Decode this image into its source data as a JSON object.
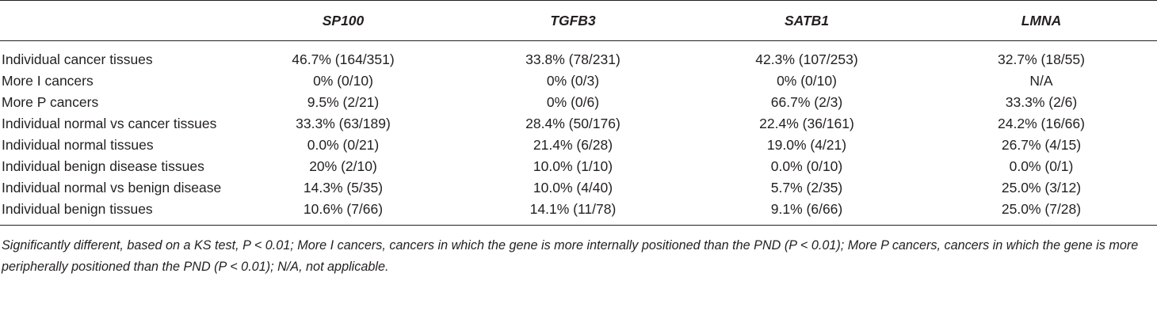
{
  "table": {
    "header": {
      "corner": "",
      "columns": [
        "SP100",
        "TGFB3",
        "SATB1",
        "LMNA"
      ]
    },
    "rows": [
      {
        "label": "Individual cancer tissues",
        "values": [
          "46.7% (164/351)",
          "33.8% (78/231)",
          "42.3% (107/253)",
          "32.7% (18/55)"
        ]
      },
      {
        "label": "More I cancers",
        "values": [
          "0% (0/10)",
          "0% (0/3)",
          "0% (0/10)",
          "N/A"
        ]
      },
      {
        "label": "More P cancers",
        "values": [
          "9.5% (2/21)",
          "0% (0/6)",
          "66.7% (2/3)",
          "33.3% (2/6)"
        ]
      },
      {
        "label": "Individual normal vs cancer tissues",
        "values": [
          "33.3% (63/189)",
          "28.4% (50/176)",
          "22.4% (36/161)",
          "24.2% (16/66)"
        ]
      },
      {
        "label": "Individual normal tissues",
        "values": [
          "0.0% (0/21)",
          "21.4% (6/28)",
          "19.0% (4/21)",
          "26.7% (4/15)"
        ]
      },
      {
        "label": "Individual benign disease tissues",
        "values": [
          "20% (2/10)",
          "10.0% (1/10)",
          "0.0% (0/10)",
          "0.0% (0/1)"
        ]
      },
      {
        "label": "Individual normal vs benign disease",
        "values": [
          "14.3% (5/35)",
          "10.0% (4/40)",
          "5.7% (2/35)",
          "25.0% (3/12)"
        ]
      },
      {
        "label": "Individual benign tissues",
        "values": [
          "10.6% (7/66)",
          "14.1% (11/78)",
          "9.1% (6/66)",
          "25.0% (7/28)"
        ]
      }
    ]
  },
  "footnote": "Significantly different, based on a KS test, P < 0.01; More I cancers, cancers in which the gene is more internally positioned than the PND (P < 0.01); More P cancers, cancers in which the gene is more peripherally positioned than the PND (P < 0.01); N/A, not applicable."
}
